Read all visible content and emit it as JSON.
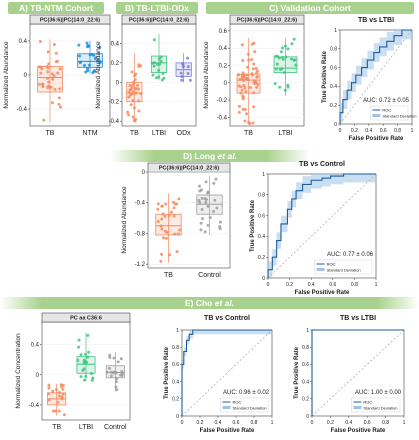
{
  "banners": {
    "a": "A) TB-NTM Cohort",
    "b": "B) TB-LTBI-ODx Cohort",
    "c": "C) Validation Cohort",
    "d_prefix": "D) Long ",
    "d_italic": "et al.",
    "e_prefix": "E) Cho ",
    "e_italic": "et al."
  },
  "colors": {
    "tb": "#f4895f",
    "ntm": "#1f8fdc",
    "ltbi": "#3fc47f",
    "odx": "#7b7fd6",
    "control": "#9e9e9e",
    "roc_line": "#1f5c99",
    "roc_band": "#9fc2e6",
    "banner": "#a9d18e"
  },
  "chart_data": [
    {
      "id": "A",
      "type": "box",
      "title": "PC(36:6)|PC(14:0_22:6)",
      "ylabel": "Normalized Abundance",
      "ylim": [
        -0.6,
        0.6
      ],
      "yticks": [
        -0.4,
        0,
        0.4
      ],
      "categories": [
        "TB",
        "NTM"
      ],
      "boxes": [
        {
          "q1": -0.2,
          "median": -0.03,
          "q3": 0.1,
          "min": -0.56,
          "max": 0.42
        },
        {
          "q1": 0.09,
          "median": 0.16,
          "q3": 0.25,
          "min": 0.02,
          "max": 0.4
        }
      ]
    },
    {
      "id": "B",
      "type": "box",
      "title": "PC(36:6)|PC(14:0_22:6)",
      "ylabel": "Normalized Abundance",
      "ylim": [
        -0.45,
        0.6
      ],
      "yticks": [
        -0.4,
        -0.2,
        0,
        0.2,
        0.4
      ],
      "categories": [
        "TB",
        "LTBI",
        "ODx"
      ],
      "boxes": [
        {
          "q1": -0.2,
          "median": -0.11,
          "q3": 0.0,
          "min": -0.4,
          "max": 0.3
        },
        {
          "q1": 0.1,
          "median": 0.2,
          "q3": 0.27,
          "min": 0.02,
          "max": 0.5
        },
        {
          "q1": 0.06,
          "median": 0.13,
          "q3": 0.2,
          "min": 0.0,
          "max": 0.3
        }
      ]
    },
    {
      "id": "C",
      "type": "box",
      "title": "PC(36:6)|PC(14:0_22:6)",
      "ylabel": "Normalized Abundance",
      "ylim": [
        -0.5,
        0.68
      ],
      "yticks": [
        -0.4,
        -0.2,
        0,
        0.2,
        0.4,
        0.6
      ],
      "categories": [
        "TB",
        "LTBI"
      ],
      "boxes": [
        {
          "q1": -0.12,
          "median": 0.03,
          "q3": 0.1,
          "min": -0.48,
          "max": 0.52
        },
        {
          "q1": 0.12,
          "median": 0.17,
          "q3": 0.3,
          "min": -0.15,
          "max": 0.52
        }
      ]
    },
    {
      "id": "C-roc",
      "type": "line",
      "title": "TB vs LTBI",
      "xlabel": "False Positive Rate",
      "ylabel": "True Positive Rate",
      "ticks": [
        0,
        0.2,
        0.4,
        0.6,
        0.8,
        1
      ],
      "auc_label": "AUC: 0.72 ± 0.05",
      "legend": [
        "ROC",
        "Standard Deviation"
      ],
      "x": [
        0,
        0,
        0.04,
        0.04,
        0.1,
        0.1,
        0.16,
        0.16,
        0.22,
        0.22,
        0.3,
        0.3,
        0.38,
        0.38,
        0.47,
        0.47,
        0.55,
        0.55,
        0.65,
        0.65,
        0.75,
        0.75,
        0.86,
        0.86,
        1
      ],
      "y": [
        0,
        0.12,
        0.12,
        0.26,
        0.26,
        0.36,
        0.36,
        0.44,
        0.44,
        0.52,
        0.52,
        0.6,
        0.6,
        0.68,
        0.68,
        0.76,
        0.76,
        0.82,
        0.82,
        0.88,
        0.88,
        0.94,
        0.94,
        1,
        1
      ],
      "band": 0.1
    },
    {
      "id": "D",
      "type": "box",
      "title": "PC(36:6)|PC(14:0_22:6)",
      "ylabel": "Normalized Abundance",
      "ylim": [
        -1.25,
        0
      ],
      "yticks": [
        -1.2,
        -0.8,
        -0.4,
        0
      ],
      "categories": [
        "TB",
        "Control"
      ],
      "boxes": [
        {
          "q1": -0.82,
          "median": -0.7,
          "q3": -0.55,
          "min": -1.18,
          "max": -0.28
        },
        {
          "q1": -0.55,
          "median": -0.42,
          "q3": -0.3,
          "min": -0.82,
          "max": -0.05
        }
      ]
    },
    {
      "id": "D-roc",
      "type": "line",
      "title": "TB vs Control",
      "xlabel": "False Positive Rate",
      "ylabel": "True Positive Rate",
      "ticks": [
        0,
        0.2,
        0.4,
        0.6,
        0.8,
        1
      ],
      "auc_label": "AUC: 0.77 ± 0.06",
      "legend": [
        "ROC",
        "Standard Deviation"
      ],
      "x": [
        0,
        0,
        0.04,
        0.04,
        0.08,
        0.08,
        0.12,
        0.12,
        0.18,
        0.18,
        0.22,
        0.22,
        0.26,
        0.26,
        0.32,
        0.32,
        0.4,
        0.4,
        0.5,
        0.5,
        0.58,
        0.58,
        0.7,
        0.7,
        1
      ],
      "y": [
        0,
        0.08,
        0.08,
        0.2,
        0.2,
        0.36,
        0.36,
        0.52,
        0.52,
        0.66,
        0.66,
        0.76,
        0.76,
        0.84,
        0.84,
        0.9,
        0.9,
        0.94,
        0.94,
        0.96,
        0.96,
        0.98,
        0.98,
        1,
        1
      ],
      "band": 0.08
    },
    {
      "id": "E",
      "type": "box",
      "title": "PC aa C36:6",
      "ylabel": "Normalized Concentration",
      "ylim": [
        -0.6,
        0.7
      ],
      "yticks": [
        -0.4,
        0,
        0.4
      ],
      "categories": [
        "TB",
        "LTBI",
        "Control"
      ],
      "boxes": [
        {
          "q1": -0.4,
          "median": -0.32,
          "q3": -0.24,
          "min": -0.54,
          "max": -0.12
        },
        {
          "q1": 0.02,
          "median": 0.14,
          "q3": 0.24,
          "min": -0.08,
          "max": 0.56
        },
        {
          "q1": -0.04,
          "median": 0.03,
          "q3": 0.12,
          "min": -0.22,
          "max": 0.3
        }
      ]
    },
    {
      "id": "E-roc1",
      "type": "line",
      "title": "TB vs Control",
      "xlabel": "False Positive Rate",
      "ylabel": "True Positive Rate",
      "ticks": [
        0,
        0.2,
        0.4,
        0.6,
        0.8,
        1
      ],
      "auc_label": "AUC: 0.96 ± 0.02",
      "legend": [
        "ROC",
        "Standard Deviation"
      ],
      "x": [
        0,
        0,
        0.02,
        0.02,
        0.05,
        0.05,
        0.08,
        0.08,
        0.12,
        0.12,
        1
      ],
      "y": [
        0,
        0.6,
        0.6,
        0.75,
        0.75,
        0.88,
        0.88,
        0.95,
        0.95,
        1,
        1
      ],
      "band": 0.05
    },
    {
      "id": "E-roc2",
      "type": "line",
      "title": "TB vs LTBI",
      "xlabel": "False Positive Rate",
      "ylabel": "True Positive Rate",
      "ticks": [
        0,
        0.2,
        0.4,
        0.6,
        0.8,
        1
      ],
      "auc_label": "AUC: 1.00 ± 0.00",
      "legend": [
        "ROC",
        "Standard Deviation"
      ],
      "x": [
        0,
        0,
        1
      ],
      "y": [
        0,
        1,
        1
      ],
      "band": 0.0
    }
  ]
}
